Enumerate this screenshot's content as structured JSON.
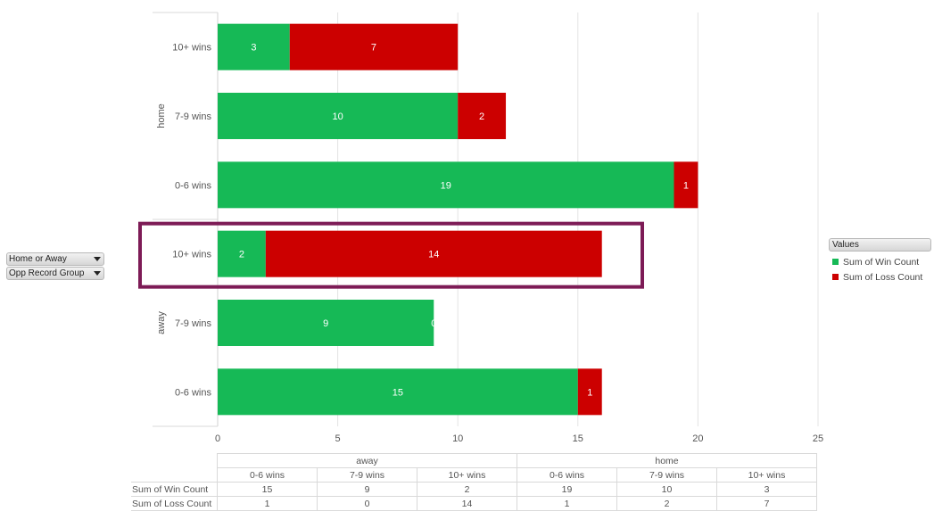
{
  "filters": [
    {
      "label": "Home or Away"
    },
    {
      "label": "Opp Record Group"
    }
  ],
  "legend": {
    "title": "Values",
    "items": [
      {
        "label": "Sum of Win Count",
        "color": "#16b956"
      },
      {
        "label": "Sum of Loss Count",
        "color": "#cc0000"
      }
    ]
  },
  "colors": {
    "win": "#16b956",
    "loss": "#cc0000",
    "highlight": "#7d1b56"
  },
  "chart_data": {
    "type": "bar",
    "orientation": "horizontal",
    "stacked": true,
    "groups": [
      {
        "name": "home",
        "categories": [
          "10+ wins",
          "7-9 wins",
          "0-6 wins"
        ]
      },
      {
        "name": "away",
        "categories": [
          "10+ wins",
          "7-9 wins",
          "0-6 wins"
        ]
      }
    ],
    "series": [
      {
        "name": "Sum of Win Count",
        "values": [
          3,
          10,
          19,
          2,
          9,
          15
        ]
      },
      {
        "name": "Sum of Loss Count",
        "values": [
          7,
          2,
          1,
          14,
          0,
          1
        ]
      }
    ],
    "xlim": [
      0,
      25
    ],
    "xticks": [
      0,
      5,
      10,
      15,
      20,
      25
    ],
    "grid": true,
    "legend_position": "right",
    "highlighted_bar": "away 10+ wins"
  },
  "table": {
    "groups": [
      "away",
      "home"
    ],
    "columns": [
      "0-6 wins",
      "7-9 wins",
      "10+ wins",
      "0-6 wins",
      "7-9 wins",
      "10+ wins"
    ],
    "rows": [
      {
        "label": "Sum of Win Count",
        "values": [
          "15",
          "9",
          "2",
          "19",
          "10",
          "3"
        ]
      },
      {
        "label": "Sum of Loss Count",
        "values": [
          "1",
          "0",
          "14",
          "1",
          "2",
          "7"
        ]
      }
    ]
  }
}
